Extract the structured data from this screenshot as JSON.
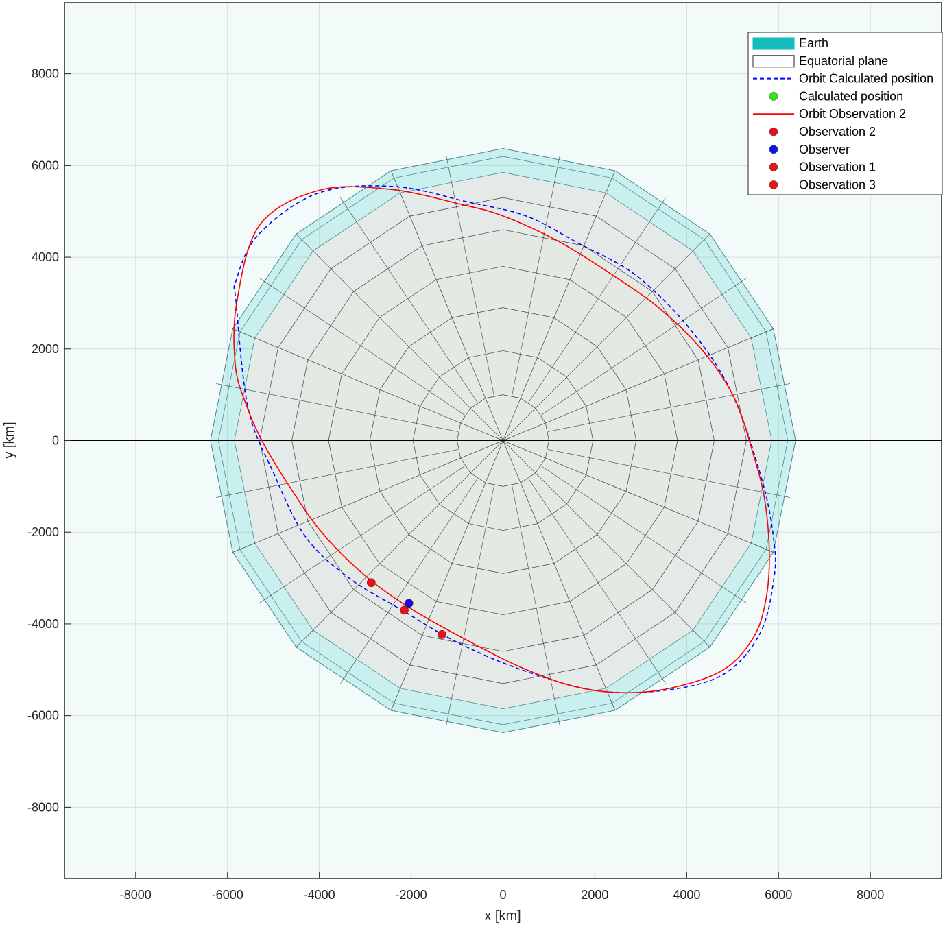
{
  "chart_data": {
    "type": "line",
    "title": "",
    "xlabel": "x [km]",
    "ylabel": "y [km]",
    "xlim": [
      -9550,
      9550
    ],
    "ylim": [
      -9550,
      9550
    ],
    "xticks": [
      -8000,
      -6000,
      -4000,
      -2000,
      0,
      2000,
      4000,
      6000,
      8000
    ],
    "yticks": [
      -8000,
      -6000,
      -4000,
      -2000,
      0,
      2000,
      4000,
      6000,
      8000
    ],
    "xtick_labels": [
      "-8000",
      "-6000",
      "-4000",
      "-2000",
      "0",
      "2000",
      "4000",
      "6000",
      "8000"
    ],
    "ytick_labels": [
      "-8000",
      "-6000",
      "-4000",
      "-2000",
      "0",
      "2000",
      "4000",
      "6000",
      "8000"
    ],
    "grid": true,
    "legend_position": "top-right",
    "earth": {
      "radius": 6371,
      "meridians": 16,
      "ring_radii": [
        1000,
        1960,
        2900,
        3800,
        4600,
        5300,
        5850,
        6200,
        6371
      ]
    },
    "series": [
      {
        "name": "Earth",
        "kind": "patch",
        "color": "#13bdbd"
      },
      {
        "name": "Equatorial plane",
        "kind": "patch",
        "color": "#ffffff"
      },
      {
        "name": "Orbit Calculated position",
        "kind": "dashed-line",
        "color": "#0000ff",
        "x": [
          -5810,
          -5810,
          -5320,
          -4020,
          -2350,
          -750,
          500,
          1650,
          2900,
          4100,
          5000,
          5650,
          5900,
          5900,
          5600,
          4800,
          3500,
          2000,
          400,
          -1000,
          -2200,
          -3350,
          -4300,
          -5000,
          -5550,
          -5810
        ],
        "y": [
          3000,
          3500,
          4500,
          5400,
          5540,
          5200,
          4900,
          4300,
          3600,
          2400,
          1000,
          -900,
          -2200,
          -3000,
          -4200,
          -5100,
          -5450,
          -5450,
          -5000,
          -4400,
          -3700,
          -3000,
          -2100,
          -700,
          700,
          3000
        ]
      },
      {
        "name": "Calculated position",
        "kind": "marker",
        "color": "#2eeb0f",
        "x": [],
        "y": []
      },
      {
        "name": "Orbit Observation 2",
        "kind": "line",
        "color": "#ff0000",
        "x": [
          -5830,
          -5800,
          -5300,
          -4000,
          -2450,
          -900,
          0,
          1200,
          2400,
          3450,
          4400,
          5050,
          5450,
          5700,
          5800,
          5720,
          5450,
          4800,
          3650,
          2550,
          1500,
          400,
          -700,
          -1950,
          -3000,
          -3950,
          -4650,
          -5250,
          -5600,
          -5830
        ],
        "y": [
          1650,
          3000,
          4700,
          5460,
          5480,
          5150,
          4900,
          4350,
          3600,
          2850,
          1900,
          900,
          -300,
          -1300,
          -2500,
          -3500,
          -4300,
          -5000,
          -5400,
          -5500,
          -5350,
          -4950,
          -4400,
          -3700,
          -2950,
          -2000,
          -1000,
          0,
          800,
          1650
        ]
      },
      {
        "name": "Observation 2",
        "kind": "marker",
        "color": "#e8111a",
        "x": [
          -2150
        ],
        "y": [
          -3700
        ]
      },
      {
        "name": "Observer",
        "kind": "marker",
        "color": "#0a14e8",
        "x": [
          -2050
        ],
        "y": [
          -3550
        ]
      },
      {
        "name": "Observation 1",
        "kind": "marker",
        "color": "#e8111a",
        "x": [
          -2870
        ],
        "y": [
          -3100
        ]
      },
      {
        "name": "Observation 3",
        "kind": "marker",
        "color": "#e8111a",
        "x": [
          -1330
        ],
        "y": [
          -4230
        ]
      }
    ]
  }
}
